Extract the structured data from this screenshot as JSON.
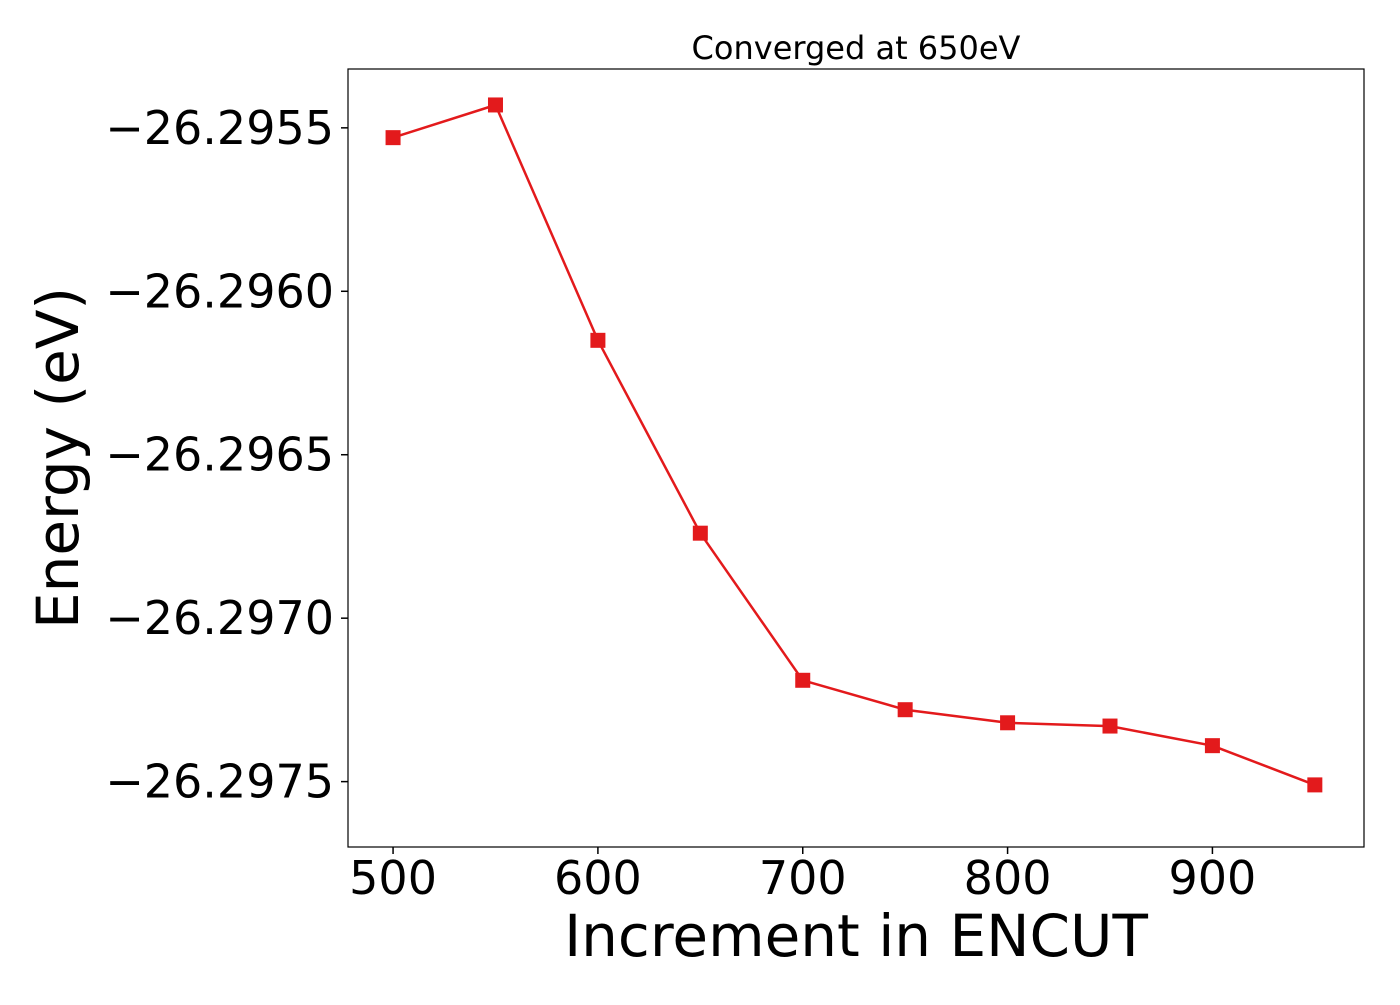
{
  "chart_data": {
    "type": "line",
    "title": "Converged at 650eV",
    "xlabel": "Increment in ENCUT",
    "ylabel": "Energy (eV)",
    "xlim": [
      478,
      974
    ],
    "ylim": [
      -26.2977,
      -26.29532
    ],
    "xticks": [
      500,
      600,
      700,
      800,
      900
    ],
    "xtick_labels": [
      "500",
      "600",
      "700",
      "800",
      "900"
    ],
    "yticks": [
      -26.2955,
      -26.296,
      -26.2965,
      -26.297,
      -26.2975
    ],
    "ytick_labels": [
      "−26.2955",
      "−26.2960",
      "−26.2965",
      "−26.2970",
      "−26.2975"
    ],
    "grid": false,
    "legend": "none",
    "marker": "square",
    "series": [
      {
        "color": "#e31a1c",
        "x": [
          500,
          550,
          600,
          650,
          700,
          750,
          800,
          850,
          900,
          950
        ],
        "y": [
          -26.29553,
          -26.29543,
          -26.29615,
          -26.29674,
          -26.29719,
          -26.29728,
          -26.29732,
          -26.29733,
          -26.29739,
          -26.29751
        ]
      }
    ]
  }
}
